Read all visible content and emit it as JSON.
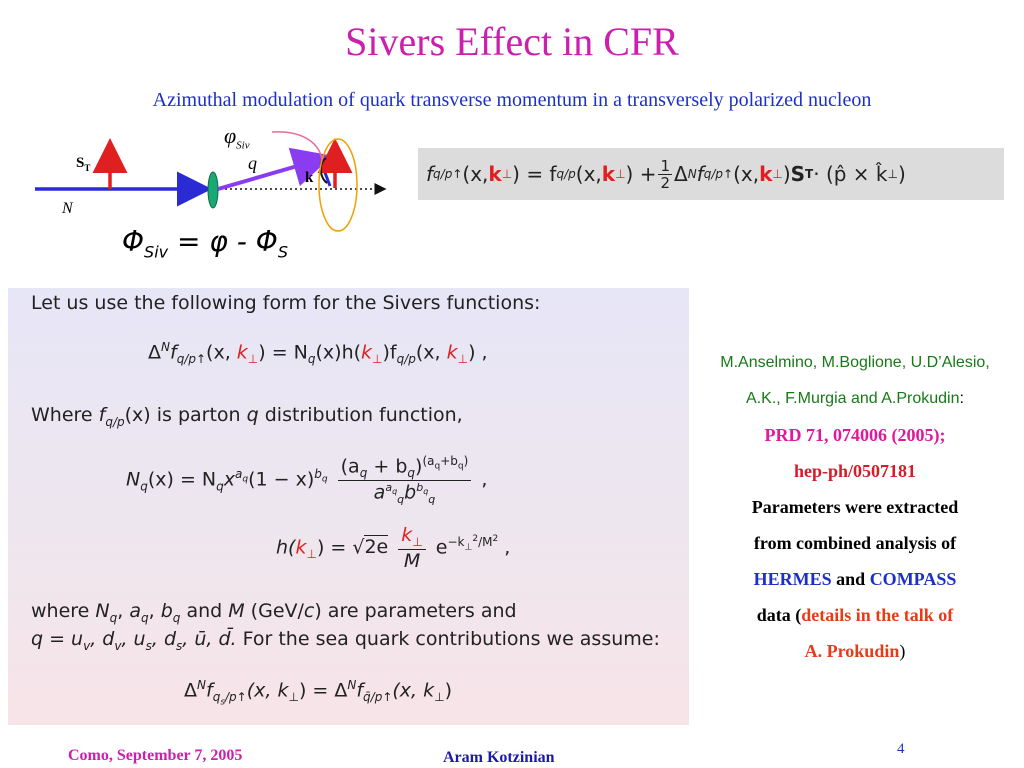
{
  "title": "Sivers Effect in CFR",
  "subtitle": "Azimuthal modulation of quark transverse momentum in a transversely polarized nucleon",
  "diagram": {
    "phi_siv_label": "φ",
    "phi_siv_sub": "Siv",
    "q_label": "q",
    "st_label": "S",
    "st_sub": "T",
    "k_label": "k",
    "n_label": "N",
    "formula": "Φ",
    "formula_sub1": "Siv",
    "formula_rest": " = φ - Φ",
    "formula_sub2": "S",
    "colors": {
      "beam": "#2b2bd6",
      "spin": "#e02020",
      "quark": "#8a3cf0",
      "nucleon": "#1aa874",
      "ellipse": "#f0a000",
      "pink": "#e86aa0"
    }
  },
  "equation_box": {
    "lhs": "f",
    "lhs_sub": "q/p↑",
    "lhs_args_a": "(x, ",
    "k": "k",
    "k_sub": "⊥",
    "lhs_args_b": ") = f",
    "rhs_sub": "q/p",
    "rhs_args_a": "(x, ",
    "rhs_args_b": ") + ",
    "half_num": "1",
    "half_den": "2",
    "delta": "Δ",
    "delta_sup": "N",
    "f2": "f",
    "f2_sub": "q/p↑",
    "f2_args_a": "(x, ",
    "f2_args_b": ") ",
    "st": "S",
    "st_sub": "T",
    "tail": " · (p̂ × k̂",
    "tail_sub": "⊥",
    "tail_end": ")"
  },
  "panel": {
    "intro": "Let us use the following form for the Sivers functions:",
    "eq1": "Δ",
    "eq1_sup": "N",
    "eq1_f": "f",
    "eq1_fsub": "q/p↑",
    "eq1_a": "(x, ",
    "eq1_k": "k",
    "eq1_ksub": "⊥",
    "eq1_b": ") = N",
    "eq1_nsub": "q",
    "eq1_c": "(x)h(",
    "eq1_d": ")f",
    "eq1_fsub2": "q/p",
    "eq1_e": "(x, ",
    "eq1_end": ") ,",
    "where1_a": "Where ",
    "where1_f": "f",
    "where1_fsub": "q/p",
    "where1_b": "(x) is parton ",
    "where1_q": "q",
    "where1_c": " distribution function,",
    "nq_lhs": "N",
    "nq_lhs_sub": "q",
    "nq_lhs_args": "(x) = N",
    "nq_sub2": "q",
    "nq_x": "x",
    "nq_x_sup": "a",
    "nq_x_supsub": "q",
    "nq_mid": "(1 − x)",
    "nq_b_sup": "b",
    "nq_b_supsub": "q",
    "nq_num": "(a",
    "nq_num_sub": "q",
    "nq_num_mid": " + b",
    "nq_num_sub2": "q",
    "nq_num_close": ")",
    "nq_num_sup": "(a",
    "nq_num_sup_sub": "q",
    "nq_num_sup_mid": "+b",
    "nq_num_sup_sub2": "q",
    "nq_num_sup_close": ")",
    "nq_den_a": "a",
    "nq_den_a_sup": "a",
    "nq_den_a_supsub": "q",
    "nq_den_a_sub": "q",
    "nq_den_b": "b",
    "nq_den_b_sup": "b",
    "nq_den_b_supsub": "q",
    "nq_den_b_sub": "q",
    "nq_end": " ,",
    "h_lhs": "h(",
    "h_k": "k",
    "h_ksub": "⊥",
    "h_mid": ") = √",
    "h_sqrt": "2e",
    "h_num": "k",
    "h_num_sub": "⊥",
    "h_den": "M",
    "h_e": " e",
    "h_exp": "−k",
    "h_exp_sub": "⊥",
    "h_exp_sup": "2",
    "h_exp_tail": "/M",
    "h_exp_tail_sup": "2",
    "h_end": " ,",
    "where2_a": "where ",
    "where2_n": "N",
    "where2_nsub": "q",
    "where2_sep1": ", ",
    "where2_a2": "a",
    "where2_a2sub": "q",
    "where2_sep2": ", ",
    "where2_b": "b",
    "where2_bsub": "q",
    "where2_and": " and ",
    "where2_m": "M",
    "where2_unit": " (GeV/",
    "where2_c": "c",
    "where2_tail": ") are parameters and",
    "where3": "q = u",
    "where3_s1": "v",
    "where3_b": ", d",
    "where3_s2": "v",
    "where3_c": ", u",
    "where3_s3": "s",
    "where3_d": ", d",
    "where3_s4": "s",
    "where3_e": ", ū, d̄.",
    "where3_tail": "  For the sea quark contributions we assume:",
    "sea_a": "Δ",
    "sea_sup": "N",
    "sea_f": "f",
    "sea_fsub": "q",
    "sea_fsubsub": "s",
    "sea_fsub2": "/p↑",
    "sea_b": "(x, k",
    "sea_ksub": "⊥",
    "sea_c": ") = Δ",
    "sea_sup2": "N",
    "sea_f2": "f",
    "sea_f2sub": "q̄/p↑",
    "sea_d": "(x, k",
    "sea_ksub2": "⊥",
    "sea_end": ")"
  },
  "side": {
    "authors1": "M.Anselmino, M.Boglione, U.D’Alesio,",
    "authors2": "A.K., F.Murgia and A.Prokudin",
    "authors2_colon": ":",
    "ref1": "PRD 71, 074006 (2005);",
    "ref2": "hep-ph/0507181",
    "text1": "Parameters were extracted",
    "text2": "from combined analysis of",
    "hermes": "HERMES",
    "and": " and ",
    "compass": "COMPASS",
    "data": "data (",
    "details": "details in the talk of",
    "prokudin": "A. Prokudin",
    "close": ")"
  },
  "footer": {
    "left": "Como, September 7,  2005",
    "center": "Aram Kotzinian",
    "page": "4"
  }
}
